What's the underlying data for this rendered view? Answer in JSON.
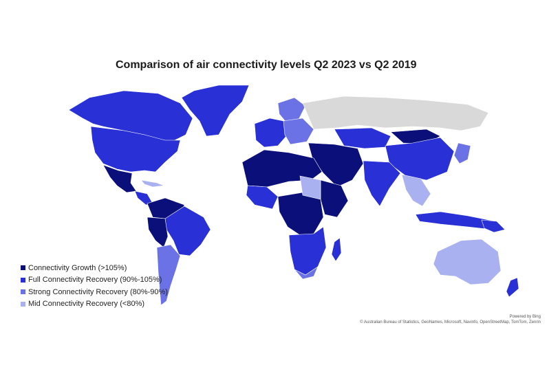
{
  "title": "Comparison of air connectivity levels Q2 2023 vs Q2 2019",
  "legend": [
    {
      "label": "Connectivity Growth (>105%)",
      "color": "#0a0f7a"
    },
    {
      "label": "Full Connectivity Recovery (90%-105%)",
      "color": "#2830d6"
    },
    {
      "label": "Strong Connectivity Recovery (80%-90%)",
      "color": "#6b72e6"
    },
    {
      "label": "Mid Connectivity Recovery (<80%)",
      "color": "#aab1f0"
    }
  ],
  "nodata_color": "#d9d9d9",
  "credits": {
    "powered": "Powered by Bing",
    "attribution": "© Australian Bureau of Statistics, GeoNames, Microsoft, Navinfo, OpenStreetMap, TomTom, Zenrin"
  }
}
